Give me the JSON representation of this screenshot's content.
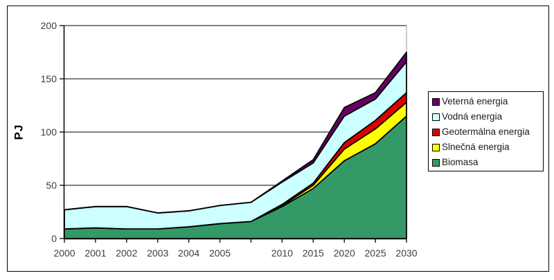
{
  "figure": {
    "y_axis_title": "PJ"
  },
  "chart_data": {
    "type": "area",
    "stacked": true,
    "title": "",
    "xlabel": "",
    "ylabel": "PJ",
    "ylim": [
      0,
      200
    ],
    "y_ticks": [
      "0",
      "50",
      "100",
      "150",
      "200"
    ],
    "grid": true,
    "legend_position": "right",
    "categories": [
      "2000",
      "2001",
      "2002",
      "2003",
      "2004",
      "2005",
      "",
      "2010",
      "2015",
      "2020",
      "2025",
      "2030"
    ],
    "series": [
      {
        "name": "Biomasa",
        "color": "#339966",
        "values": [
          9,
          10,
          9,
          9,
          11,
          14,
          16,
          30,
          47,
          73,
          89,
          115
        ]
      },
      {
        "name": "Slnečná energia",
        "color": "#FFFF00",
        "values": [
          0,
          0,
          0,
          0,
          0,
          0,
          0,
          1,
          3,
          11,
          14,
          13
        ]
      },
      {
        "name": "Geotermálna energia",
        "color": "#DD0000",
        "values": [
          0,
          0,
          0,
          0,
          0,
          0,
          0,
          1,
          2,
          6,
          8,
          9
        ]
      },
      {
        "name": "Vodná energia",
        "color": "#CCFFFF",
        "values": [
          18,
          20,
          21,
          15,
          15,
          17,
          18,
          21,
          19,
          25,
          20,
          29
        ]
      },
      {
        "name": "Veterná energia",
        "color": "#660066",
        "values": [
          0,
          0,
          0,
          0,
          0,
          0,
          0,
          1,
          3,
          8,
          6,
          9
        ]
      }
    ],
    "stack_totals": [
      27,
      30,
      30,
      24,
      26,
      31,
      34,
      54,
      74,
      123,
      137,
      175
    ],
    "colors": {
      "axis": "#000000",
      "gridline": "#000000",
      "plot_right_border": "#999999",
      "tick_text": "#3c3c3c"
    }
  }
}
